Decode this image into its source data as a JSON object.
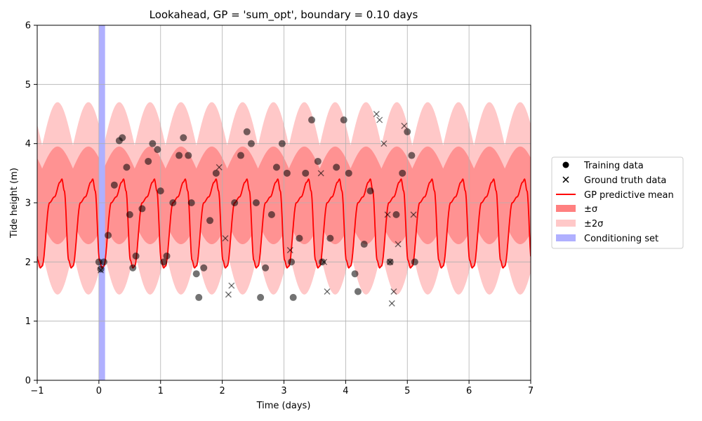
{
  "chart_data": {
    "type": "line",
    "title": "Lookahead, GP = 'sum_opt', boundary = 0.10 days",
    "xlabel": "Time (days)",
    "ylabel": "Tide height (m)",
    "xlim": [
      -1,
      7
    ],
    "ylim": [
      0,
      6
    ],
    "xticks": [
      -1,
      0,
      1,
      2,
      3,
      4,
      5,
      6,
      7
    ],
    "yticks": [
      0,
      1,
      2,
      3,
      4,
      5,
      6
    ],
    "grid": true,
    "legend_position": "right, outside plot",
    "legend": [
      {
        "label": "Training data",
        "marker": "circle",
        "color": "#000000"
      },
      {
        "label": "Ground truth data",
        "marker": "x",
        "color": "#000000"
      },
      {
        "label": "GP predictive mean",
        "marker": "line",
        "color": "#ff0000"
      },
      {
        "label": "±σ",
        "marker": "patch",
        "color": "#ff8080"
      },
      {
        "label": "±2σ",
        "marker": "patch",
        "color": "#ffc8c8"
      },
      {
        "label": "Conditioning set",
        "marker": "patch",
        "color": "#b0b0ff"
      }
    ],
    "conditioning_set": {
      "x_range": [
        0.0,
        0.1
      ],
      "color": "#b0b0ff"
    },
    "gp_mean": {
      "period_days": 0.5,
      "peak_times": [
        -0.6,
        -0.1,
        0.4,
        0.9,
        1.4,
        1.9,
        2.4,
        2.9,
        3.4,
        3.9,
        4.4,
        4.9,
        5.4,
        5.9,
        6.4,
        6.9
      ],
      "high": 3.4,
      "shoulder": 3.0,
      "low": 1.93,
      "sigma_band": [
        2.3,
        3.95
      ],
      "two_sigma_band": [
        1.45,
        4.7
      ]
    },
    "series": [
      {
        "name": "Training data",
        "points": [
          [
            0.0,
            2.0
          ],
          [
            0.03,
            1.88
          ],
          [
            0.08,
            2.0
          ],
          [
            0.15,
            2.45
          ],
          [
            0.25,
            3.3
          ],
          [
            0.33,
            4.05
          ],
          [
            0.38,
            4.1
          ],
          [
            0.45,
            3.6
          ],
          [
            0.5,
            2.8
          ],
          [
            0.55,
            1.9
          ],
          [
            0.6,
            2.1
          ],
          [
            0.7,
            2.9
          ],
          [
            0.8,
            3.7
          ],
          [
            0.87,
            4.0
          ],
          [
            0.95,
            3.9
          ],
          [
            1.0,
            3.2
          ],
          [
            1.05,
            2.0
          ],
          [
            1.1,
            2.1
          ],
          [
            1.2,
            3.0
          ],
          [
            1.3,
            3.8
          ],
          [
            1.37,
            4.1
          ],
          [
            1.45,
            3.8
          ],
          [
            1.5,
            3.0
          ],
          [
            1.58,
            1.8
          ],
          [
            1.62,
            1.4
          ],
          [
            1.7,
            1.9
          ],
          [
            1.8,
            2.7
          ],
          [
            1.9,
            3.5
          ],
          [
            2.2,
            3.0
          ],
          [
            2.3,
            3.8
          ],
          [
            2.4,
            4.2
          ],
          [
            2.47,
            4.0
          ],
          [
            2.55,
            3.0
          ],
          [
            2.62,
            1.4
          ],
          [
            2.7,
            1.9
          ],
          [
            2.8,
            2.8
          ],
          [
            2.88,
            3.6
          ],
          [
            2.97,
            4.0
          ],
          [
            3.05,
            3.5
          ],
          [
            3.12,
            2.0
          ],
          [
            3.15,
            1.4
          ],
          [
            3.25,
            2.4
          ],
          [
            3.35,
            3.5
          ],
          [
            3.45,
            4.4
          ],
          [
            3.55,
            3.7
          ],
          [
            3.62,
            2.0
          ],
          [
            3.75,
            2.4
          ],
          [
            3.85,
            3.6
          ],
          [
            3.97,
            4.4
          ],
          [
            4.05,
            3.5
          ],
          [
            4.15,
            1.8
          ],
          [
            4.2,
            1.5
          ],
          [
            4.3,
            2.3
          ],
          [
            4.4,
            3.2
          ],
          [
            4.72,
            2.0
          ],
          [
            4.82,
            2.8
          ],
          [
            4.92,
            3.5
          ],
          [
            5.0,
            4.2
          ],
          [
            5.07,
            3.8
          ],
          [
            5.12,
            2.0
          ]
        ]
      },
      {
        "name": "Ground truth data",
        "points": [
          [
            0.03,
            1.86
          ],
          [
            1.95,
            3.6
          ],
          [
            2.05,
            2.4
          ],
          [
            2.1,
            1.45
          ],
          [
            2.15,
            1.6
          ],
          [
            3.1,
            2.2
          ],
          [
            3.6,
            3.5
          ],
          [
            3.65,
            2.0
          ],
          [
            3.7,
            1.5
          ],
          [
            4.5,
            4.5
          ],
          [
            4.55,
            4.4
          ],
          [
            4.62,
            4.0
          ],
          [
            4.68,
            2.8
          ],
          [
            4.72,
            2.0
          ],
          [
            4.75,
            1.3
          ],
          [
            4.78,
            1.5
          ],
          [
            4.85,
            2.3
          ],
          [
            4.95,
            4.3
          ],
          [
            5.1,
            2.8
          ]
        ]
      }
    ]
  }
}
